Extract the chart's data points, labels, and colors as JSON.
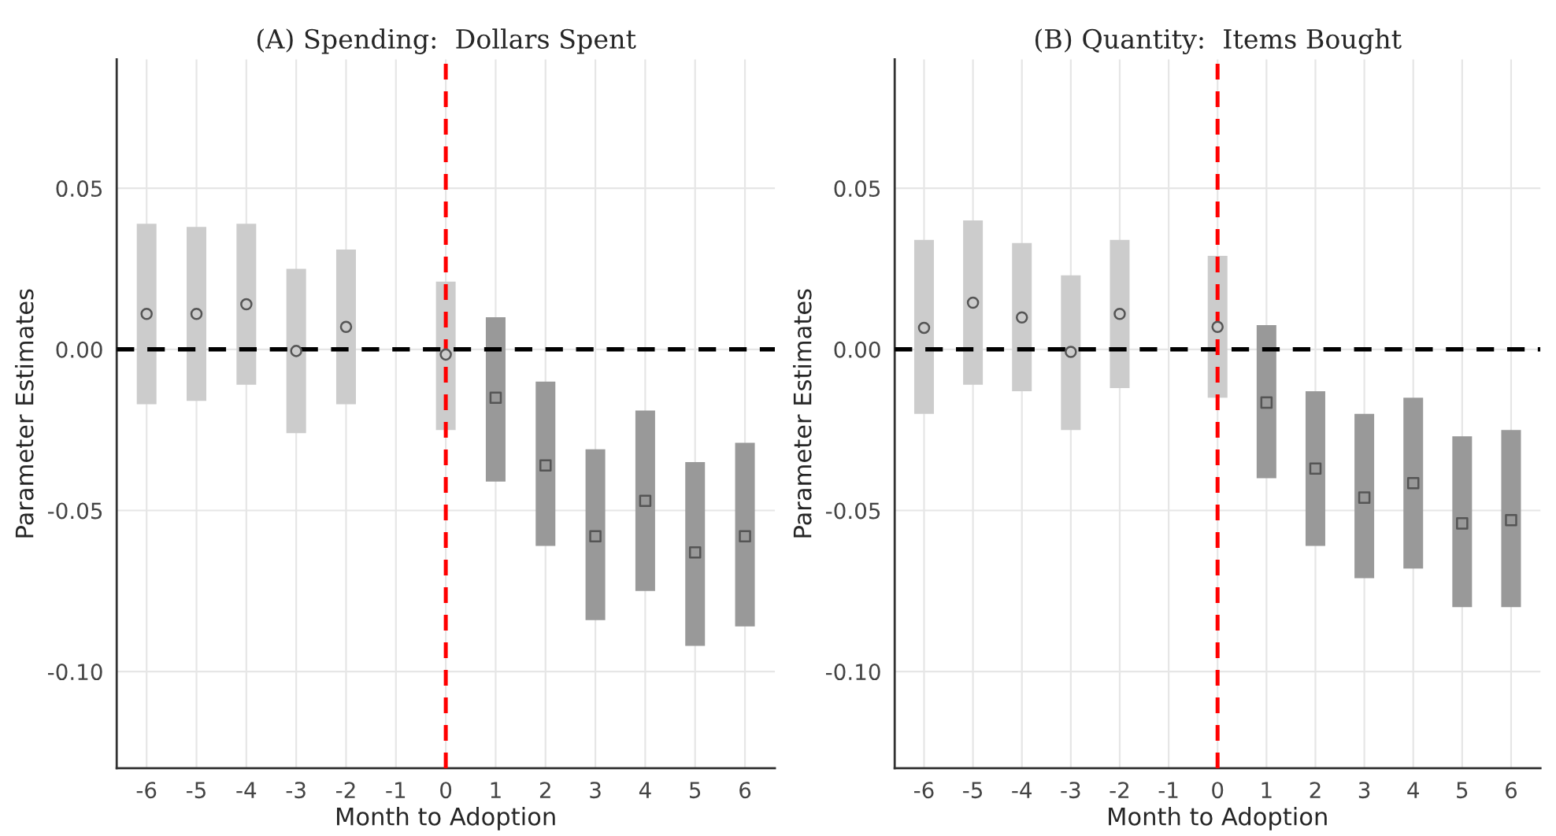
{
  "chart_data": [
    {
      "type": "scatter",
      "title": "(A) Spending:  Dollars Spent",
      "xlabel": "Month to Adoption",
      "ylabel": "Parameter Estimates",
      "series": [
        {
          "color": "#cccccc",
          "marker": "circle",
          "x": [
            -6,
            -5,
            -4,
            -3,
            -2,
            0
          ],
          "values": [
            0.011,
            0.011,
            0.014,
            -0.0005,
            0.007,
            -0.0016
          ],
          "errors": [
            [
              -0.017,
              0.039
            ],
            [
              -0.016,
              0.038
            ],
            [
              -0.011,
              0.039
            ],
            [
              -0.026,
              0.025
            ],
            [
              -0.017,
              0.031
            ],
            [
              -0.025,
              0.021
            ]
          ]
        },
        {
          "color": "#999999",
          "marker": "square",
          "x": [
            1,
            2,
            3,
            4,
            5,
            6
          ],
          "values": [
            -0.015,
            -0.036,
            -0.058,
            -0.047,
            -0.063,
            -0.058
          ],
          "errors": [
            [
              -0.041,
              0.01
            ],
            [
              -0.061,
              -0.01
            ],
            [
              -0.084,
              -0.031
            ],
            [
              -0.075,
              -0.019
            ],
            [
              -0.092,
              -0.035
            ],
            [
              -0.086,
              -0.029
            ]
          ]
        }
      ],
      "ref_lines": [
        {
          "axis": "y",
          "value": 0,
          "color": "#000000",
          "line_style": "dashed"
        },
        {
          "axis": "x",
          "value": 0,
          "color": "#ff0000",
          "line_style": "dashed"
        }
      ],
      "xlim": [
        -6.6,
        6.6
      ],
      "xticks": [
        {
          "value": -6,
          "label": "-6"
        },
        {
          "value": -5,
          "label": "-5"
        },
        {
          "value": -4,
          "label": "-4"
        },
        {
          "value": -3,
          "label": "-3"
        },
        {
          "value": -2,
          "label": "-2"
        },
        {
          "value": -1,
          "label": "-1"
        },
        0,
        1,
        2,
        3,
        4,
        5,
        6
      ],
      "ylim": [
        -0.13,
        0.09
      ],
      "yticks": [
        {
          "value": -0.1,
          "label": "-0.10"
        },
        {
          "value": -0.05,
          "label": "-0.05"
        },
        {
          "value": 0,
          "label": "0.00"
        },
        0.05
      ],
      "grid": true,
      "legend": false
    },
    {
      "type": "scatter",
      "title": "(B) Quantity:  Items Bought",
      "xlabel": "Month to Adoption",
      "ylabel": "Parameter Estimates",
      "series": [
        {
          "color": "#cccccc",
          "marker": "circle",
          "x": [
            -6,
            -5,
            -4,
            -3,
            -2,
            0
          ],
          "values": [
            0.0067,
            0.0145,
            0.0099,
            -0.0008,
            0.011,
            0.007
          ],
          "errors": [
            [
              -0.02,
              0.034
            ],
            [
              -0.011,
              0.04
            ],
            [
              -0.013,
              0.033
            ],
            [
              -0.025,
              0.023
            ],
            [
              -0.012,
              0.034
            ],
            [
              -0.015,
              0.029
            ]
          ]
        },
        {
          "color": "#999999",
          "marker": "square",
          "x": [
            1,
            2,
            3,
            4,
            5,
            6
          ],
          "values": [
            -0.0165,
            -0.037,
            -0.046,
            -0.0415,
            -0.054,
            -0.053
          ],
          "errors": [
            [
              -0.04,
              0.0075
            ],
            [
              -0.061,
              -0.013
            ],
            [
              -0.071,
              -0.02
            ],
            [
              -0.068,
              -0.015
            ],
            [
              -0.08,
              -0.027
            ],
            [
              -0.08,
              -0.025
            ]
          ]
        }
      ],
      "ref_lines": [
        {
          "axis": "y",
          "value": 0,
          "color": "#000000",
          "line_style": "dashed"
        },
        {
          "axis": "x",
          "value": 0,
          "color": "#ff0000",
          "line_style": "dashed"
        }
      ],
      "xlim": [
        -6.6,
        6.6
      ],
      "xticks": [
        {
          "value": -6,
          "label": "-6"
        },
        {
          "value": -5,
          "label": "-5"
        },
        {
          "value": -4,
          "label": "-4"
        },
        {
          "value": -3,
          "label": "-3"
        },
        {
          "value": -2,
          "label": "-2"
        },
        {
          "value": -1,
          "label": "-1"
        },
        0,
        1,
        2,
        3,
        4,
        5,
        6
      ],
      "ylim": [
        -0.13,
        0.09
      ],
      "yticks": [
        {
          "value": -0.1,
          "label": "-0.10"
        },
        {
          "value": -0.05,
          "label": "-0.05"
        },
        {
          "value": 0,
          "label": "0.00"
        },
        0.05
      ],
      "grid": true,
      "legend": false
    }
  ]
}
